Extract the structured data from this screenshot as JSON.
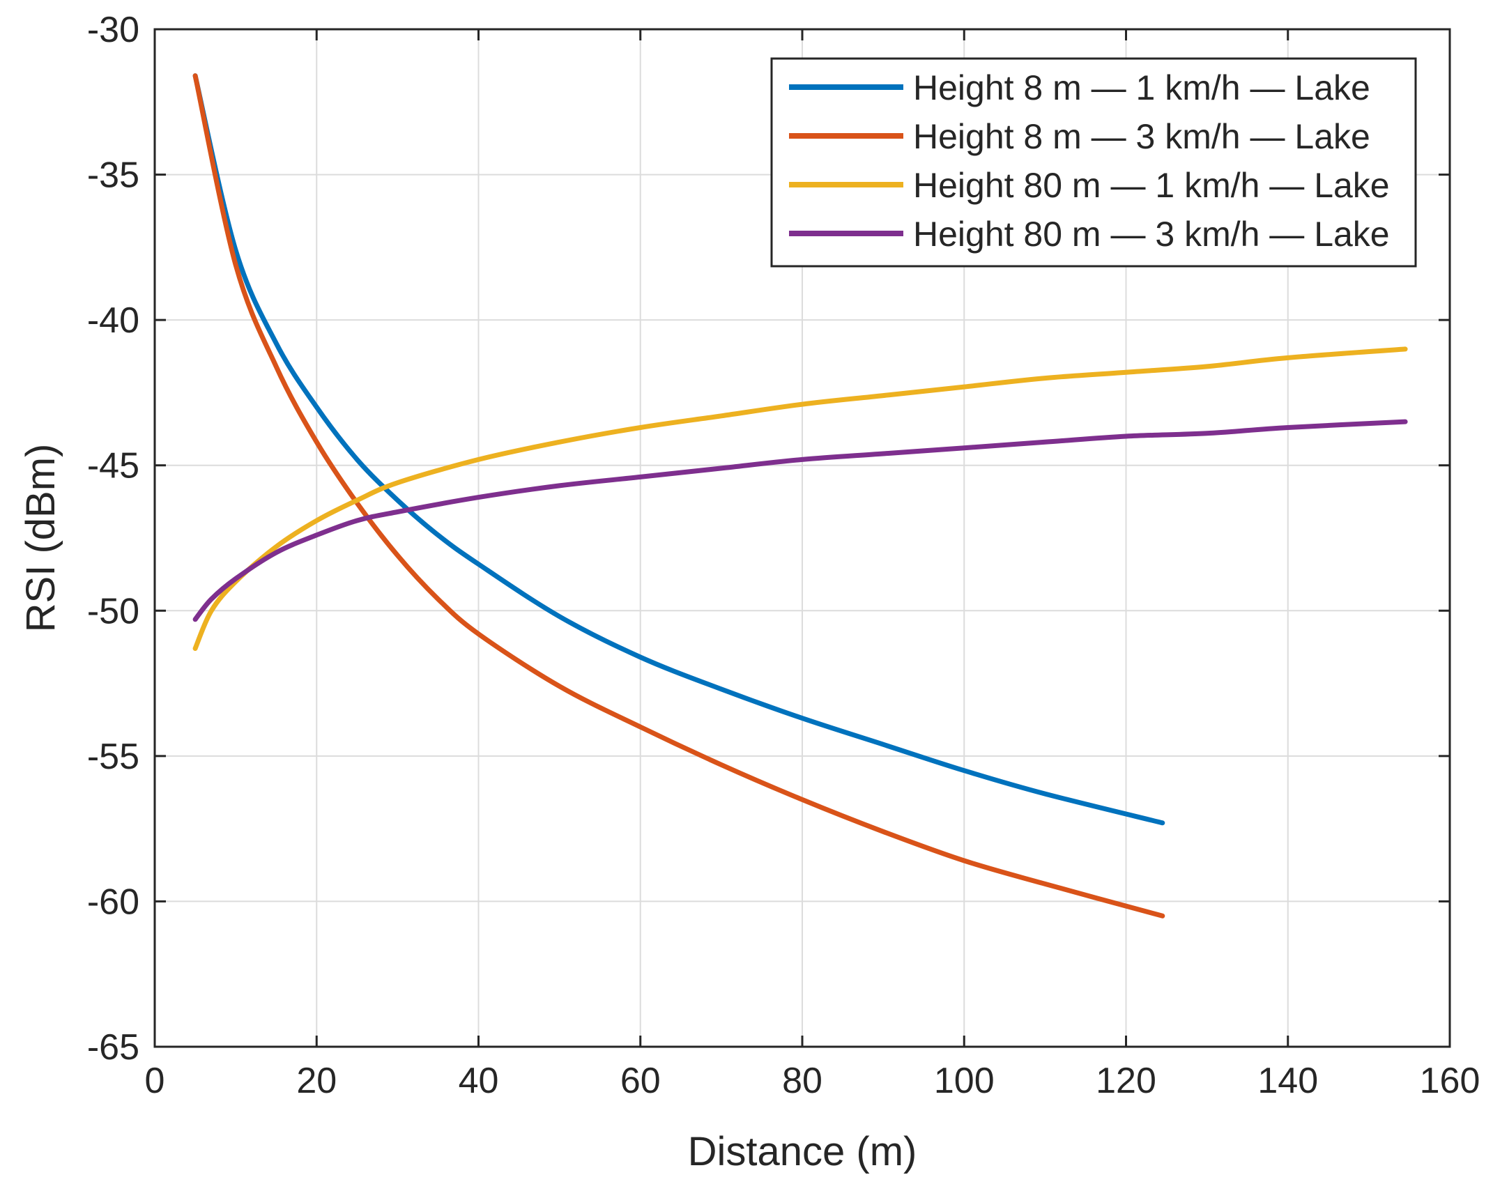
{
  "chart_data": {
    "type": "line",
    "title": "",
    "xlabel": "Distance (m)",
    "ylabel": "RSI (dBm)",
    "xlim": [
      0,
      160
    ],
    "ylim": [
      -65,
      -30
    ],
    "xticks": [
      0,
      20,
      40,
      60,
      80,
      100,
      120,
      140,
      160
    ],
    "yticks": [
      -65,
      -60,
      -55,
      -50,
      -45,
      -40,
      -35,
      -30
    ],
    "xtick_labels": [
      "0",
      "20",
      "40",
      "60",
      "80",
      "100",
      "120",
      "140",
      "160"
    ],
    "ytick_labels": [
      "-65",
      "-60",
      "-55",
      "-50",
      "-45",
      "-40",
      "-35",
      "-30"
    ],
    "grid": true,
    "legend_position": "top-right",
    "series": [
      {
        "name": "Height 8 m — 1 km/h — Lake",
        "color": "#0072BD",
        "x": [
          5,
          10,
          15,
          20,
          25,
          30,
          35,
          40,
          50,
          60,
          70,
          80,
          90,
          100,
          110,
          124.5
        ],
        "y": [
          -31.6,
          -37.6,
          -40.8,
          -43.0,
          -44.8,
          -46.2,
          -47.4,
          -48.4,
          -50.2,
          -51.6,
          -52.7,
          -53.7,
          -54.6,
          -55.5,
          -56.3,
          -57.3
        ]
      },
      {
        "name": "Height 8 m — 3 km/h — Lake",
        "color": "#D95319",
        "x": [
          5,
          10,
          15,
          20,
          25,
          30,
          35,
          40,
          50,
          60,
          70,
          80,
          90,
          100,
          110,
          124.5
        ],
        "y": [
          -31.6,
          -38.1,
          -41.6,
          -44.2,
          -46.3,
          -48.1,
          -49.6,
          -50.8,
          -52.6,
          -54.0,
          -55.3,
          -56.5,
          -57.6,
          -58.6,
          -59.4,
          -60.5
        ]
      },
      {
        "name": "Height 80 m — 1 km/h — Lake",
        "color": "#EDB120",
        "x": [
          5,
          7,
          10,
          15,
          20,
          25,
          30,
          40,
          50,
          60,
          70,
          80,
          90,
          100,
          110,
          120,
          130,
          140,
          154.5
        ],
        "y": [
          -51.3,
          -50.0,
          -49.0,
          -47.8,
          -46.9,
          -46.2,
          -45.6,
          -44.8,
          -44.2,
          -43.7,
          -43.3,
          -42.9,
          -42.6,
          -42.3,
          -42.0,
          -41.8,
          -41.6,
          -41.3,
          -41.0
        ]
      },
      {
        "name": "Height 80 m — 3 km/h — Lake",
        "color": "#7E2F8E",
        "x": [
          5,
          7,
          10,
          15,
          20,
          25,
          30,
          40,
          50,
          60,
          70,
          80,
          90,
          100,
          110,
          120,
          130,
          140,
          154.5
        ],
        "y": [
          -50.3,
          -49.6,
          -48.9,
          -48.0,
          -47.4,
          -46.9,
          -46.6,
          -46.1,
          -45.7,
          -45.4,
          -45.1,
          -44.8,
          -44.6,
          -44.4,
          -44.2,
          -44.0,
          -43.9,
          -43.7,
          -43.5
        ]
      }
    ]
  }
}
